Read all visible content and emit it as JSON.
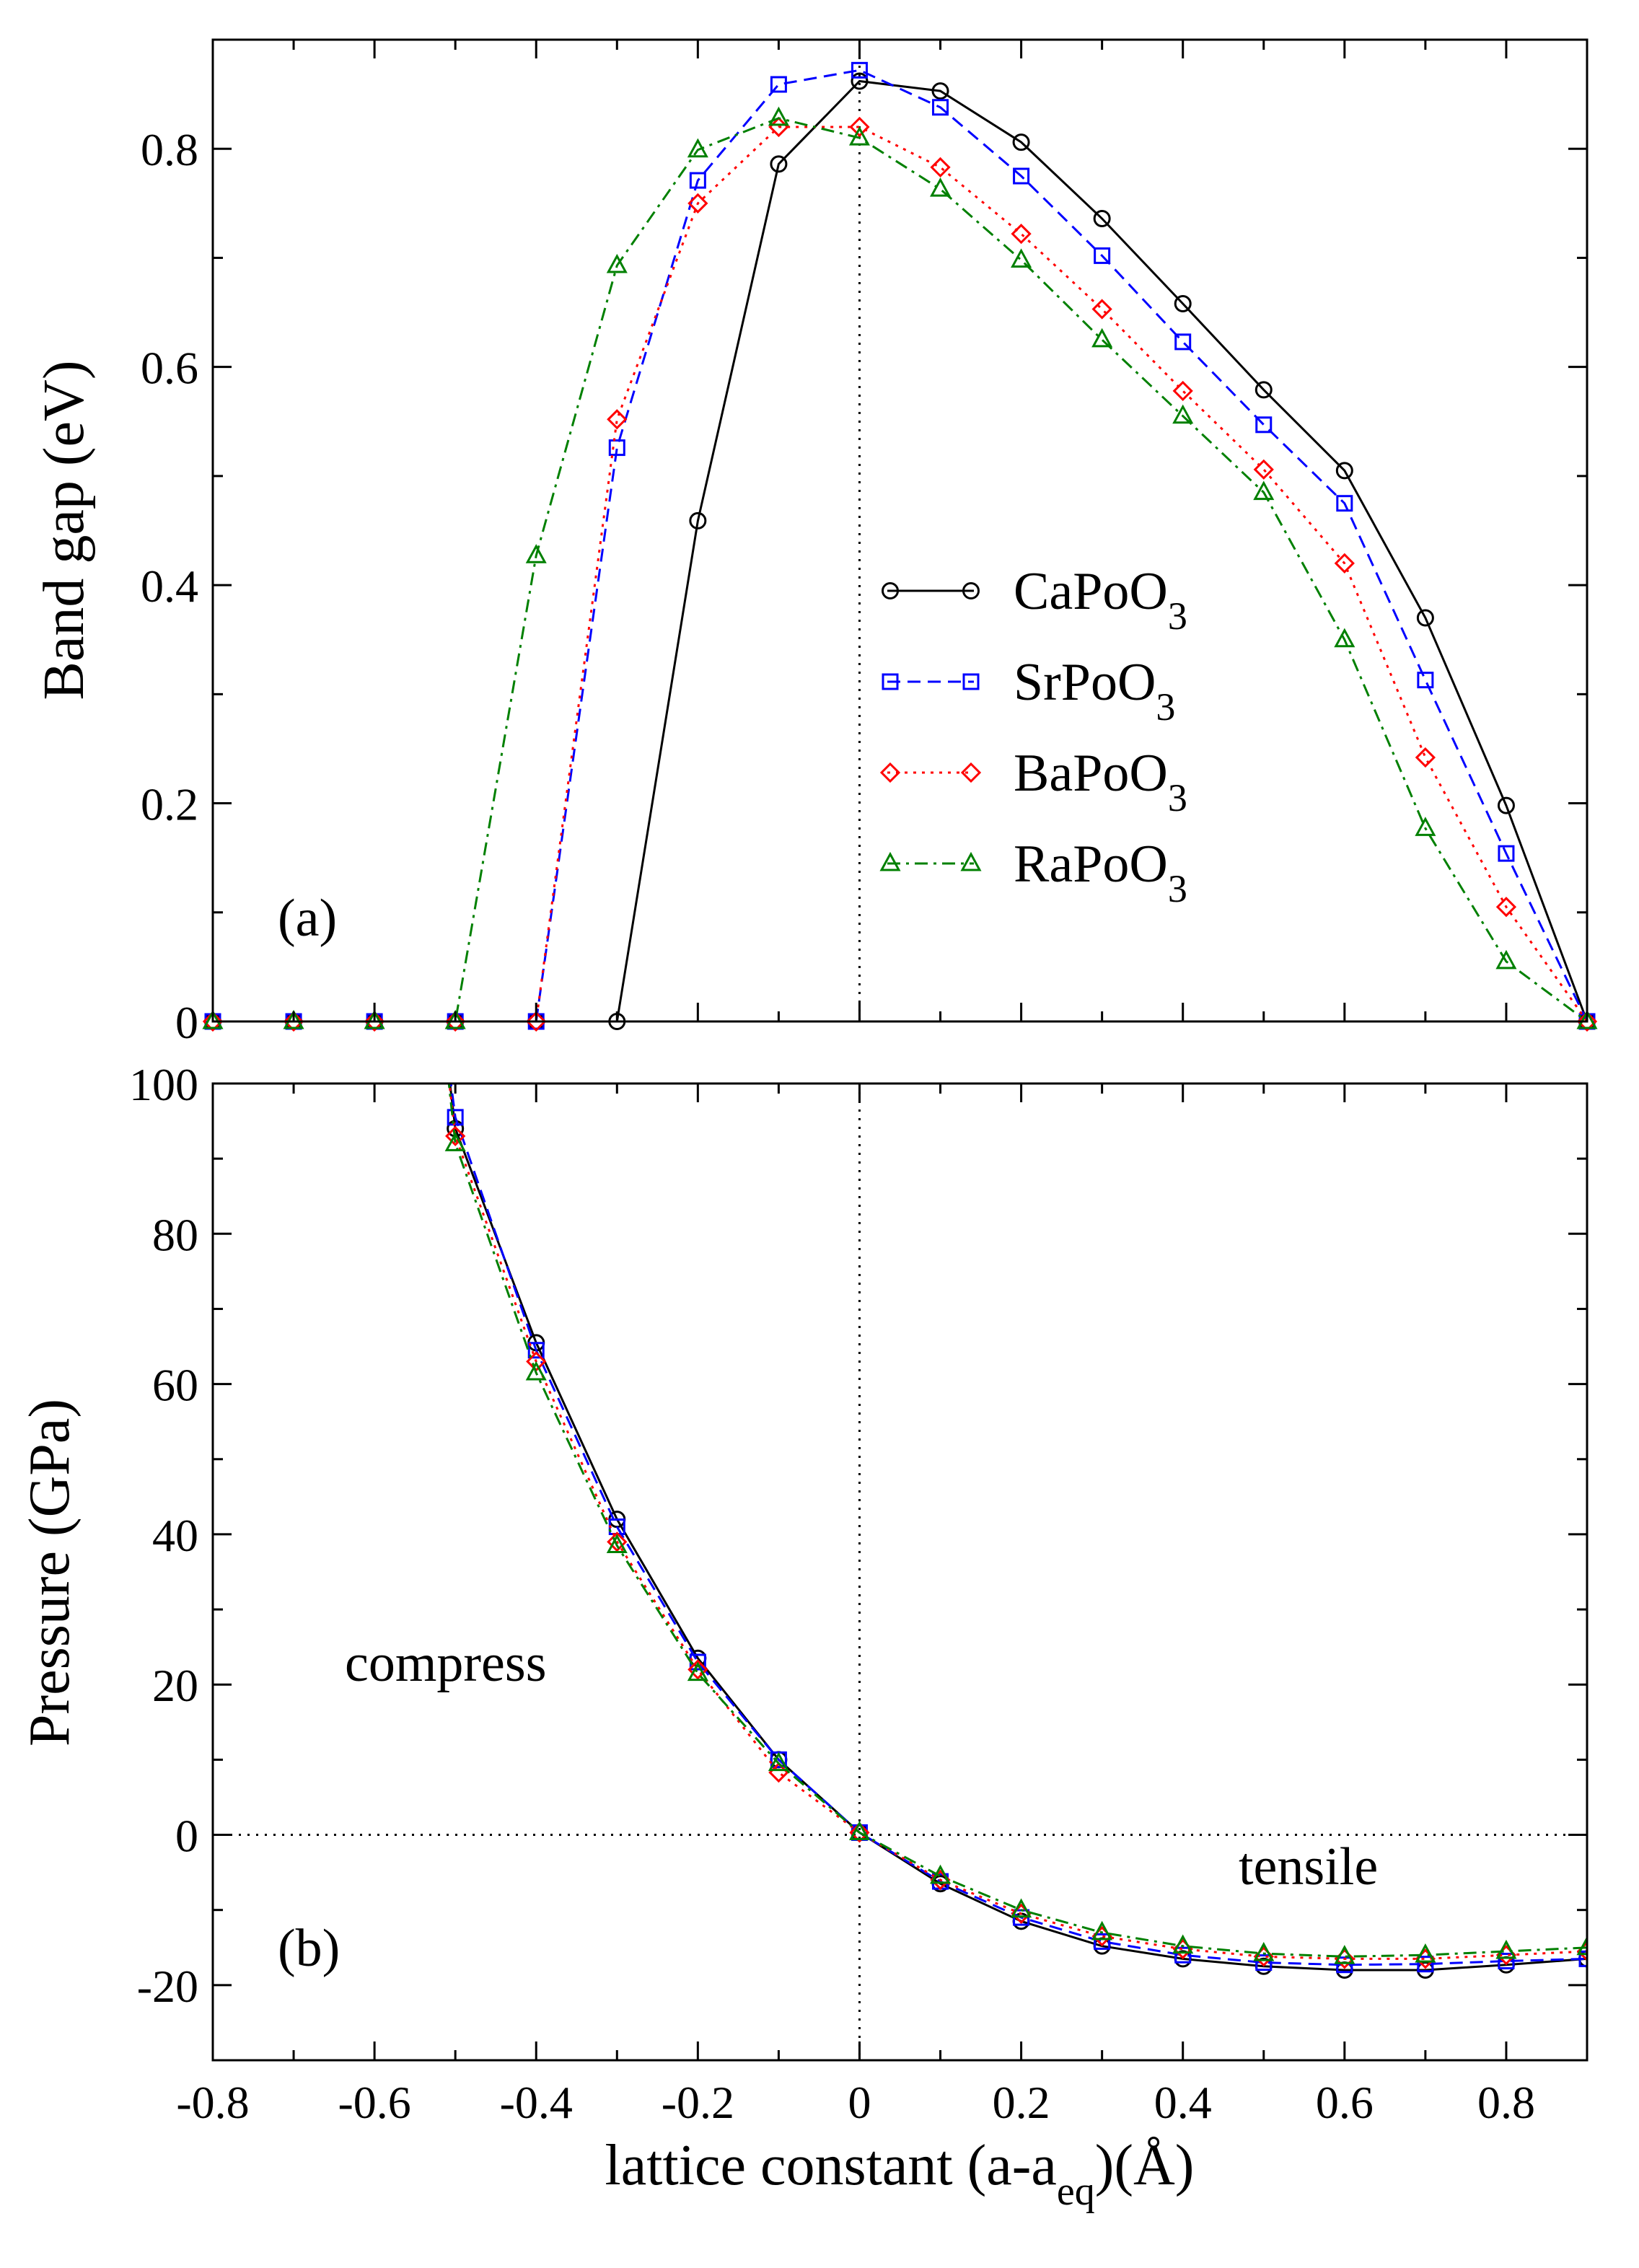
{
  "figure": {
    "xlabel_main": "lattice constant (a-a",
    "xlabel_sub": "eq",
    "xlabel_tail": ")(Å)"
  },
  "chart_data": [
    {
      "type": "line",
      "panel_label": "(a)",
      "ylabel": "Band gap (eV)",
      "xlim": [
        -0.8,
        0.9
      ],
      "ylim": [
        0,
        0.9
      ],
      "xticks": [
        -0.8,
        -0.6,
        -0.4,
        -0.2,
        0,
        0.2,
        0.4,
        0.6,
        0.8
      ],
      "xtick_labels": [
        "-0.8",
        "-0.6",
        "-0.4",
        "-0.2",
        "0",
        "0.2",
        "0.4",
        "0.6",
        "0.8"
      ],
      "yticks": [
        0,
        0.2,
        0.4,
        0.6,
        0.8
      ],
      "ytick_labels": [
        "0",
        "0.2",
        "0.4",
        "0.6",
        "0.8"
      ],
      "x": [
        -0.8,
        -0.7,
        -0.6,
        -0.5,
        -0.4,
        -0.3,
        -0.2,
        -0.1,
        0,
        0.1,
        0.2,
        0.3,
        0.4,
        0.5,
        0.6,
        0.7,
        0.8,
        0.9
      ],
      "legend_position": "center-right",
      "series": [
        {
          "name": "CaPoO",
          "sub": "3",
          "color": "#000000",
          "marker": "circle",
          "dash": "",
          "values": [
            0,
            0,
            0,
            0,
            0,
            0,
            0.459,
            0.786,
            0.862,
            0.853,
            0.806,
            0.736,
            0.658,
            0.579,
            0.505,
            0.37,
            0.198,
            0
          ]
        },
        {
          "name": "SrPoO",
          "sub": "3",
          "color": "#0000ff",
          "marker": "square",
          "dash": "18,10",
          "values": [
            0,
            0,
            0,
            0,
            0,
            0.526,
            0.771,
            0.859,
            0.872,
            0.838,
            0.775,
            0.702,
            0.623,
            0.547,
            0.475,
            0.313,
            0.154,
            0
          ]
        },
        {
          "name": "BaPoO",
          "sub": "3",
          "color": "#ff0000",
          "marker": "diamond",
          "dash": "4,8",
          "values": [
            0,
            0,
            0,
            0,
            0,
            0.552,
            0.75,
            0.82,
            0.82,
            0.783,
            0.722,
            0.653,
            0.578,
            0.506,
            0.42,
            0.242,
            0.105,
            0
          ]
        },
        {
          "name": "RaPoO",
          "sub": "3",
          "color": "#008000",
          "marker": "triangle",
          "dash": "18,8,4,8",
          "values": [
            0,
            0,
            0,
            0,
            0.427,
            0.693,
            0.799,
            0.828,
            0.81,
            0.763,
            0.698,
            0.625,
            0.555,
            0.485,
            0.35,
            0.177,
            0.055,
            0
          ]
        }
      ]
    },
    {
      "type": "line",
      "panel_label": "(b)",
      "ylabel": "Pressure (GPa)",
      "xlim": [
        -0.8,
        0.9
      ],
      "ylim": [
        -30,
        100
      ],
      "yticks": [
        -20,
        0,
        20,
        40,
        60,
        80,
        100
      ],
      "ytick_labels": [
        "-20",
        "0",
        "20",
        "40",
        "60",
        "80",
        "100"
      ],
      "x": [
        -0.5,
        -0.4,
        -0.3,
        -0.2,
        -0.1,
        0,
        0.1,
        0.2,
        0.3,
        0.4,
        0.5,
        0.6,
        0.7,
        0.8,
        0.9
      ],
      "annotations": {
        "left": "compress",
        "right": "tensile"
      },
      "series": [
        {
          "name": "CaPoO3",
          "color": "#000000",
          "marker": "circle",
          "dash": "",
          "values": [
            94,
            65.5,
            42,
            23.5,
            10,
            0.3,
            -6.5,
            -11.5,
            -14.8,
            -16.5,
            -17.5,
            -18,
            -18,
            -17.3,
            -16.5
          ]
        },
        {
          "name": "SrPoO3",
          "color": "#0000ff",
          "marker": "square",
          "dash": "18,10",
          "values": [
            95.5,
            64.5,
            41,
            23,
            10,
            0.3,
            -6.2,
            -11,
            -14.2,
            -16,
            -17,
            -17.3,
            -17.2,
            -16.8,
            -16.5
          ]
        },
        {
          "name": "BaPoO3",
          "color": "#ff0000",
          "marker": "diamond",
          "dash": "4,8",
          "values": [
            93,
            63,
            39,
            22,
            8.3,
            0.3,
            -6,
            -10.5,
            -13.5,
            -15.2,
            -16.2,
            -16.5,
            -16.5,
            -16,
            -15.5
          ]
        },
        {
          "name": "RaPoO3",
          "color": "#008000",
          "marker": "triangle",
          "dash": "18,8,4,8",
          "values": [
            92,
            61.5,
            38.5,
            21.5,
            9.5,
            0.3,
            -5.5,
            -10,
            -13,
            -14.8,
            -15.8,
            -16.2,
            -16,
            -15.5,
            -15
          ]
        }
      ]
    }
  ]
}
